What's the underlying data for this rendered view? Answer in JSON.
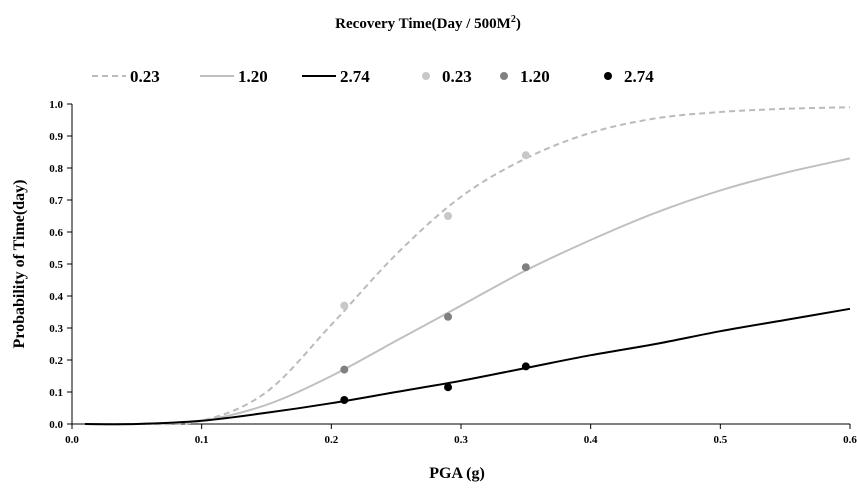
{
  "chart_data": {
    "type": "line",
    "title": "Recovery Time(Day / 500M",
    "title_superscript": "2",
    "title_suffix": ")",
    "xlabel": "PGA (g)",
    "ylabel": "Probability of Time(day)",
    "xlim": [
      0.0,
      0.6
    ],
    "ylim": [
      0.0,
      1.0
    ],
    "x_ticks": [
      "0.0",
      "0.1",
      "0.2",
      "0.3",
      "0.4",
      "0.5",
      "0.6"
    ],
    "y_ticks": [
      "0.0",
      "0.1",
      "0.2",
      "0.3",
      "0.4",
      "0.5",
      "0.6",
      "0.7",
      "0.8",
      "0.9",
      "1.0"
    ],
    "grid": false,
    "legend_position": "top",
    "series": [
      {
        "name": "0.23",
        "kind": "line",
        "style": "dashed",
        "color": "#bbbbbb",
        "x": [
          0.01,
          0.05,
          0.1,
          0.15,
          0.2,
          0.25,
          0.3,
          0.35,
          0.4,
          0.45,
          0.5,
          0.55,
          0.6
        ],
        "y": [
          0.0,
          0.0,
          0.01,
          0.1,
          0.31,
          0.53,
          0.71,
          0.83,
          0.91,
          0.955,
          0.975,
          0.985,
          0.99
        ]
      },
      {
        "name": "1.20",
        "kind": "line",
        "style": "solid",
        "color": "#c0c0c0",
        "x": [
          0.01,
          0.05,
          0.1,
          0.15,
          0.2,
          0.25,
          0.3,
          0.35,
          0.4,
          0.45,
          0.5,
          0.55,
          0.6
        ],
        "y": [
          0.0,
          0.0,
          0.01,
          0.06,
          0.15,
          0.26,
          0.37,
          0.48,
          0.575,
          0.66,
          0.73,
          0.785,
          0.83
        ]
      },
      {
        "name": "2.74",
        "kind": "line",
        "style": "solid",
        "color": "#000000",
        "x": [
          0.01,
          0.05,
          0.1,
          0.15,
          0.2,
          0.25,
          0.3,
          0.35,
          0.4,
          0.45,
          0.5,
          0.55,
          0.6
        ],
        "y": [
          0.0,
          0.0,
          0.01,
          0.035,
          0.065,
          0.1,
          0.135,
          0.175,
          0.215,
          0.25,
          0.29,
          0.325,
          0.36
        ]
      },
      {
        "name": "0.23",
        "kind": "scatter",
        "color": "#c8c8c8",
        "x": [
          0.21,
          0.29,
          0.35
        ],
        "y": [
          0.37,
          0.65,
          0.84
        ]
      },
      {
        "name": "1.20",
        "kind": "scatter",
        "color": "#808080",
        "x": [
          0.21,
          0.29,
          0.35
        ],
        "y": [
          0.17,
          0.335,
          0.49
        ]
      },
      {
        "name": "2.74",
        "kind": "scatter",
        "color": "#000000",
        "x": [
          0.21,
          0.29,
          0.35
        ],
        "y": [
          0.075,
          0.115,
          0.18
        ]
      }
    ]
  }
}
